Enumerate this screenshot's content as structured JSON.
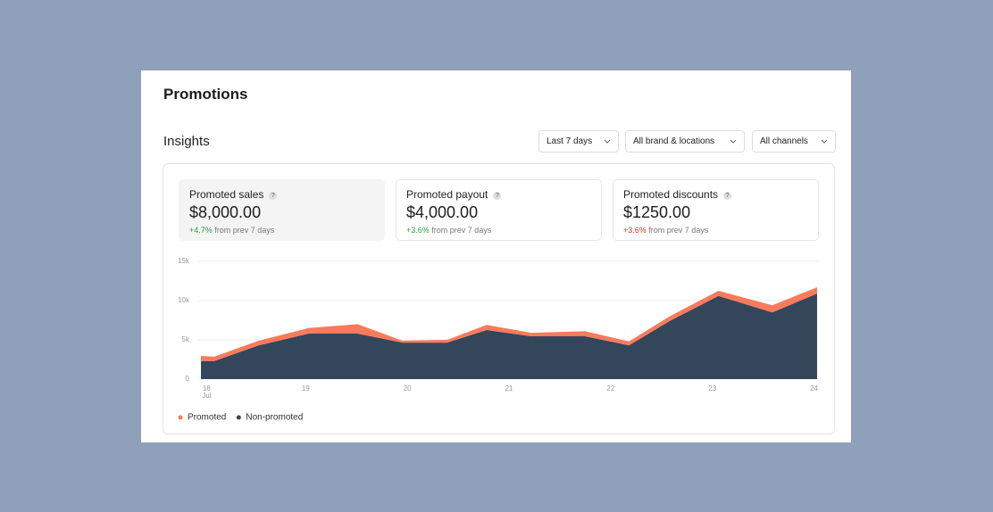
{
  "header": {
    "title": "Promotions"
  },
  "section": {
    "title": "Insights"
  },
  "filters": [
    "Last 7 days",
    "All brand & locations",
    "All channels"
  ],
  "cards": [
    {
      "label": "Promoted sales",
      "help": "?",
      "value": "$8,000.00",
      "change": "+4.7%",
      "change_color": "#2e9e3e",
      "change_note": "from prev 7 days",
      "highlighted": true
    },
    {
      "label": "Promoted payout",
      "help": "?",
      "value": "$4,000.00",
      "change": "+3.6%",
      "change_color": "#2e9e3e",
      "change_note": "from prev 7 days",
      "highlighted": false
    },
    {
      "label": "Promoted discounts",
      "help": "?",
      "value": "$1250.00",
      "change": "+3.6%",
      "change_color": "#d9342b",
      "change_note": "from prev 7 days",
      "highlighted": false
    }
  ],
  "chart_data": {
    "type": "area",
    "stacked": true,
    "grid": true,
    "legend": "bottom-left",
    "x": [
      17.97,
      18.1,
      18.54,
      19.03,
      19.51,
      19.95,
      20.39,
      20.78,
      21.22,
      21.75,
      22.18,
      22.58,
      23.06,
      23.59,
      24.03
    ],
    "xlim": [
      17.97,
      24.03
    ],
    "xticks": [
      18,
      19,
      20,
      21,
      22,
      23,
      24
    ],
    "x_month_label": "Jul",
    "ylim": [
      0,
      15000
    ],
    "yticks": [
      0,
      {
        "value": 5000,
        "label": "5k"
      },
      {
        "value": 10000,
        "label": "10k"
      },
      {
        "value": 15000,
        "label": "15k"
      }
    ],
    "series": [
      {
        "name": "Promoted",
        "color": "#f97b5c",
        "values": [
          650,
          550,
          600,
          700,
          1200,
          250,
          350,
          650,
          450,
          650,
          500,
          600,
          650,
          900,
          800
        ]
      },
      {
        "name": "Non-promoted",
        "color": "#34465a",
        "values": [
          2300,
          2300,
          4300,
          5800,
          5800,
          4650,
          4650,
          6250,
          5450,
          5450,
          4300,
          7400,
          10600,
          8500,
          10900
        ]
      }
    ]
  }
}
